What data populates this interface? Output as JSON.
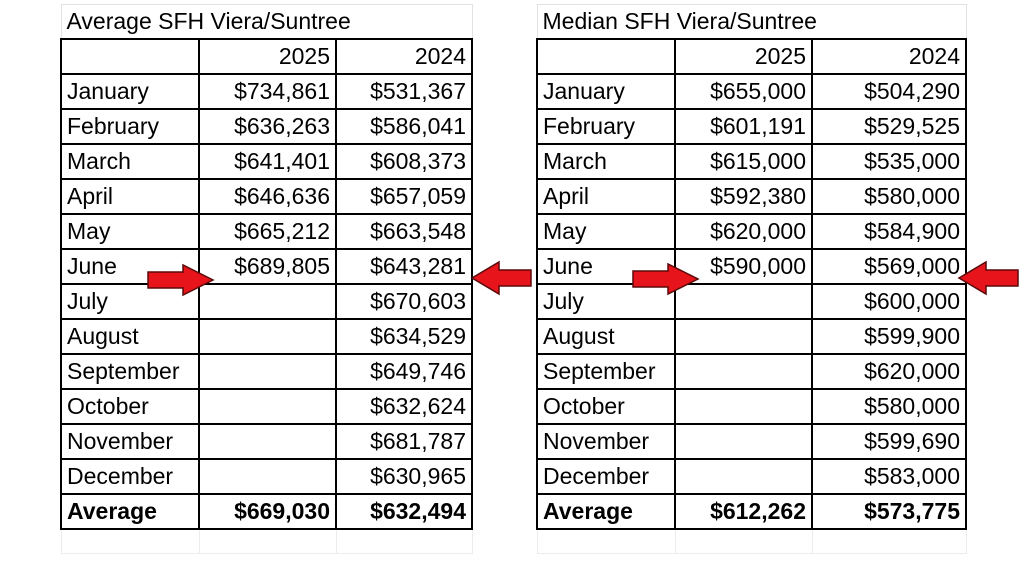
{
  "left": {
    "title": "Average SFH Viera/Suntree",
    "years": [
      "2025",
      "2024"
    ],
    "months": [
      {
        "month": "January",
        "y2025": "$734,861",
        "y2024": "$531,367"
      },
      {
        "month": "February",
        "y2025": "$636,263",
        "y2024": "$586,041"
      },
      {
        "month": "March",
        "y2025": "$641,401",
        "y2024": "$608,373"
      },
      {
        "month": "April",
        "y2025": "$646,636",
        "y2024": "$657,059"
      },
      {
        "month": "May",
        "y2025": "$665,212",
        "y2024": "$663,548"
      },
      {
        "month": "June",
        "y2025": "$689,805",
        "y2024": "$643,281"
      },
      {
        "month": "July",
        "y2025": "",
        "y2024": "$670,603"
      },
      {
        "month": "August",
        "y2025": "",
        "y2024": "$634,529"
      },
      {
        "month": "September",
        "y2025": "",
        "y2024": "$649,746"
      },
      {
        "month": "October",
        "y2025": "",
        "y2024": "$632,624"
      },
      {
        "month": "November",
        "y2025": "",
        "y2024": "$681,787"
      },
      {
        "month": "December",
        "y2025": "",
        "y2024": "$630,965"
      }
    ],
    "footer": {
      "label": "Average",
      "y2025": "$669,030",
      "y2024": "$632,494"
    }
  },
  "right": {
    "title": "Median SFH Viera/Suntree",
    "years": [
      "2025",
      "2024"
    ],
    "months": [
      {
        "month": "January",
        "y2025": "$655,000",
        "y2024": "$504,290"
      },
      {
        "month": "February",
        "y2025": "$601,191",
        "y2024": "$529,525"
      },
      {
        "month": "March",
        "y2025": "$615,000",
        "y2024": "$535,000"
      },
      {
        "month": "April",
        "y2025": "$592,380",
        "y2024": "$580,000"
      },
      {
        "month": "May",
        "y2025": "$620,000",
        "y2024": "$584,900"
      },
      {
        "month": "June",
        "y2025": "$590,000",
        "y2024": "$569,000"
      },
      {
        "month": "July",
        "y2025": "",
        "y2024": "$600,000"
      },
      {
        "month": "August",
        "y2025": "",
        "y2024": "$599,900"
      },
      {
        "month": "September",
        "y2025": "",
        "y2024": "$620,000"
      },
      {
        "month": "October",
        "y2025": "",
        "y2024": "$580,000"
      },
      {
        "month": "November",
        "y2025": "",
        "y2024": "$599,690"
      },
      {
        "month": "December",
        "y2025": "",
        "y2024": "$583,000"
      }
    ],
    "footer": {
      "label": "Average",
      "y2025": "$612,262",
      "y2024": "$573,775"
    }
  },
  "annotations": {
    "arrow_color": "#e8141c",
    "arrow_outline": "#5a0a0a",
    "icon": "red-right-arrow",
    "pointing_at": "June"
  }
}
